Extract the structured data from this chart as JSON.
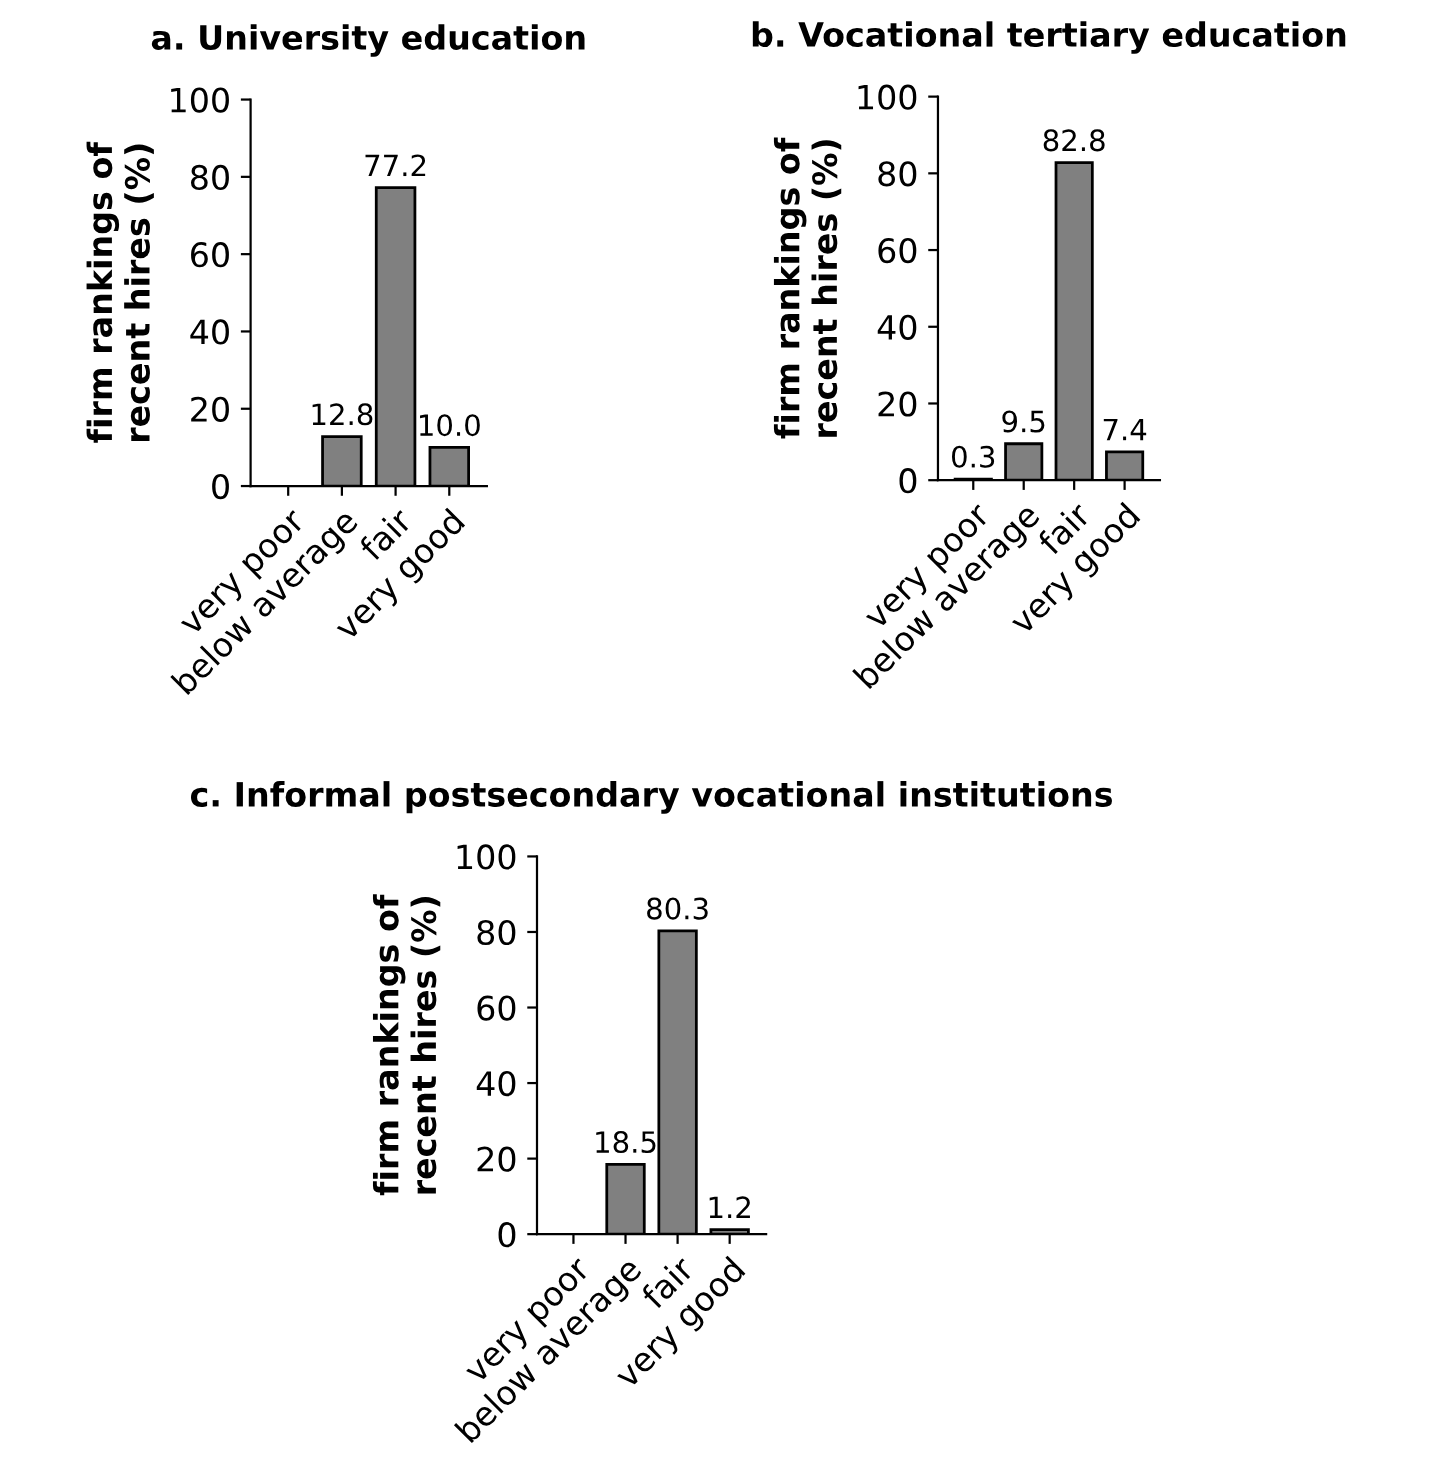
{
  "chart_data": [
    {
      "type": "bar",
      "title": "a. University education",
      "ylabel": "firm rankings of\nrecent hires (%)",
      "categories": [
        "very poor",
        "below average",
        "fair",
        "very good"
      ],
      "values": [
        null,
        12.8,
        77.2,
        10.0
      ],
      "value_labels": [
        null,
        "12.8",
        "77.2",
        "10.0"
      ],
      "color": "#808080",
      "ylim": [
        0,
        100
      ],
      "yticks": [
        0,
        20,
        40,
        60,
        80,
        100
      ],
      "grid": false,
      "legend": false
    },
    {
      "type": "bar",
      "title": "b. Vocational tertiary education",
      "ylabel": "firm rankings of\nrecent hires (%)",
      "categories": [
        "very poor",
        "below average",
        "fair",
        "very good"
      ],
      "values": [
        0.3,
        9.5,
        82.8,
        7.4
      ],
      "value_labels": [
        "0.3",
        "9.5",
        "82.8",
        "7.4"
      ],
      "color": "#808080",
      "ylim": [
        0,
        100
      ],
      "yticks": [
        0,
        20,
        40,
        60,
        80,
        100
      ],
      "grid": false,
      "legend": false
    },
    {
      "type": "bar",
      "title": "c. Informal postsecondary vocational institutions",
      "ylabel": "firm rankings of\nrecent hires (%)",
      "categories": [
        "very poor",
        "below average",
        "fair",
        "very good"
      ],
      "values": [
        null,
        18.5,
        80.3,
        1.2
      ],
      "value_labels": [
        null,
        "18.5",
        "80.3",
        "1.2"
      ],
      "color": "#808080",
      "ylim": [
        0,
        100
      ],
      "yticks": [
        0,
        20,
        40,
        60,
        80,
        100
      ],
      "grid": false,
      "legend": false
    }
  ]
}
